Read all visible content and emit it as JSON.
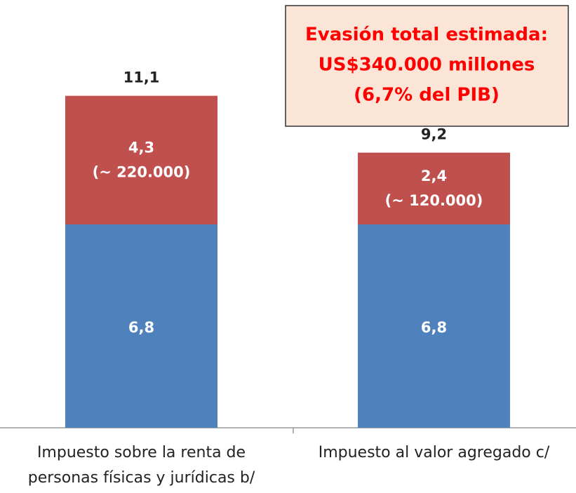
{
  "chart_data": {
    "type": "stacked_bar",
    "categories": [
      "Impuesto sobre la renta de personas físicas y jurídicas b/",
      "Impuesto al valor agregado c/"
    ],
    "series": [
      {
        "color": "#4f81bd",
        "values": [
          6.8,
          6.8
        ],
        "value_labels": [
          "6,8",
          "6,8"
        ]
      },
      {
        "color": "#c0504d",
        "values": [
          4.3,
          2.4
        ],
        "value_labels": [
          "4,3",
          "2,4"
        ],
        "sub_labels": [
          "(~ 220.000)",
          "(~ 120.000)"
        ]
      }
    ],
    "totals": [
      11.1,
      9.2
    ],
    "total_labels": [
      "11,1",
      "9,2"
    ],
    "annotation": [
      "Evasión total estimada:",
      "US$340.000 millones",
      "(6,7% del PIB)"
    ]
  }
}
